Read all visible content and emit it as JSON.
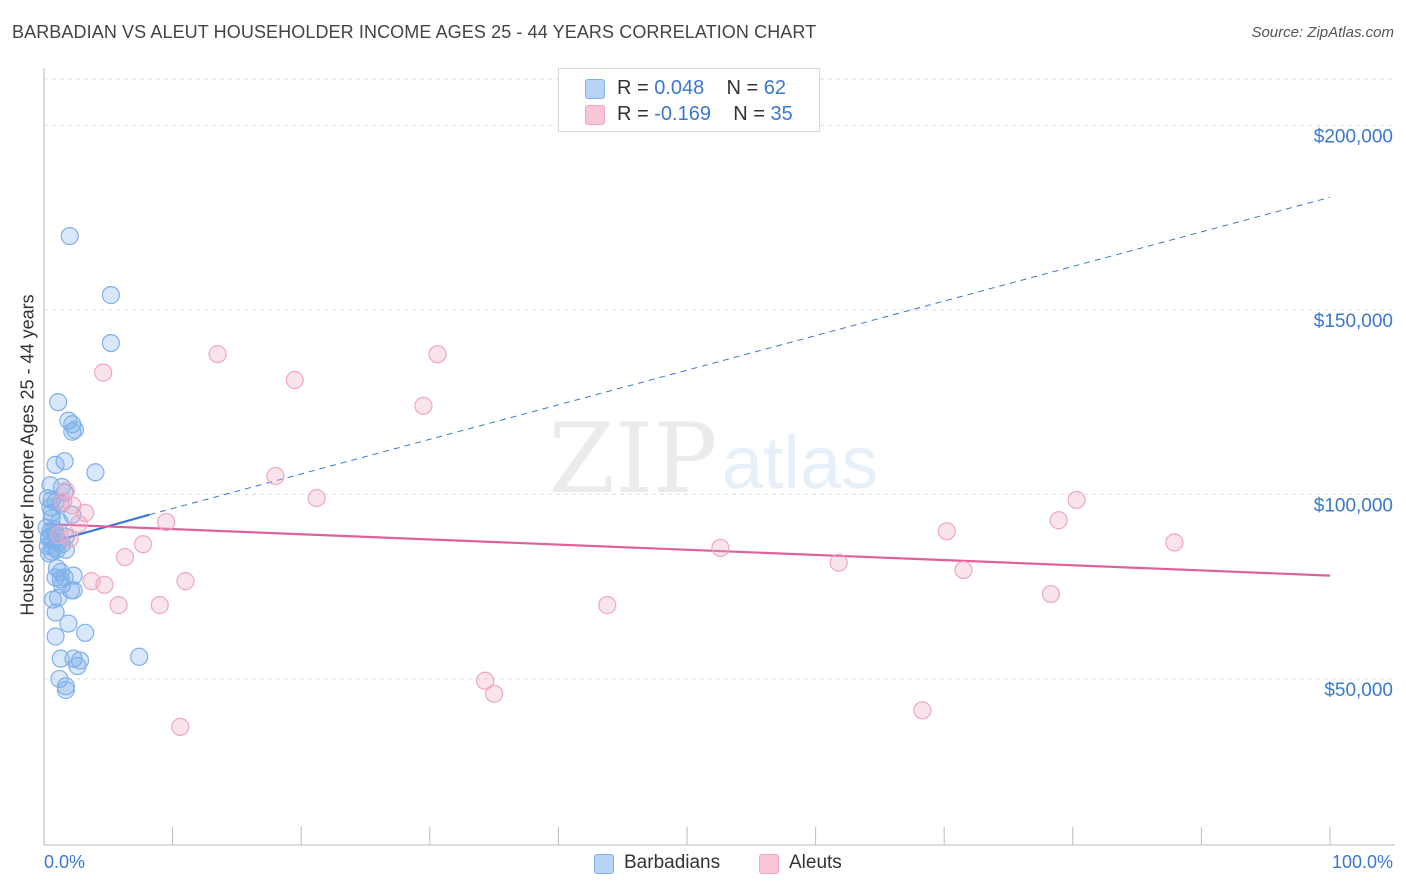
{
  "title": "BARBADIAN VS ALEUT HOUSEHOLDER INCOME AGES 25 - 44 YEARS CORRELATION CHART",
  "source": "Source: ZipAtlas.com",
  "colors": {
    "blue": "#7fb0ea",
    "blue_line": "#3a78d0",
    "pink": "#f0a6c0",
    "pink_line": "#e0609a",
    "grid": "#dddddd",
    "tick_text": "#3a78d0"
  },
  "legend": {
    "rows": [
      {
        "r_label": "R = ",
        "r_value": "0.048",
        "n_label": "N = ",
        "n_value": "62",
        "color": "#b9d3f5",
        "border": "#7fb0ea"
      },
      {
        "r_label": "R = ",
        "r_value": "-0.169",
        "n_label": "N = ",
        "n_value": "35",
        "color": "#f9c6d6",
        "border": "#f0a6c0"
      }
    ]
  },
  "bottom_legend": {
    "barbadians": "Barbadians",
    "aleuts": "Aleuts"
  },
  "watermark": {
    "zip": "ZIP",
    "atlas": "atlas"
  },
  "chart_data": {
    "type": "scatter",
    "title": "BARBADIAN VS ALEUT HOUSEHOLDER INCOME AGES 25 - 44 YEARS CORRELATION CHART",
    "xlabel": "",
    "ylabel": "Householder Income Ages 25 - 44 years",
    "xlim": [
      0,
      100
    ],
    "ylim": [
      5000,
      215000
    ],
    "x_tick_labels": [
      "0.0%",
      "100.0%"
    ],
    "y_ticks": [
      50000,
      100000,
      150000,
      200000
    ],
    "y_tick_labels": [
      "$50,000",
      "$100,000",
      "$150,000",
      "$200,000"
    ],
    "grid": true,
    "legend_position": "top-center",
    "series": [
      {
        "name": "Barbadians",
        "color": "#7fb0ea",
        "points": [
          [
            2.0,
            170000
          ],
          [
            5.2,
            154000
          ],
          [
            5.2,
            141000
          ],
          [
            1.1,
            125000
          ],
          [
            1.9,
            120000
          ],
          [
            2.2,
            119000
          ],
          [
            2.2,
            117000
          ],
          [
            2.4,
            117500
          ],
          [
            1.6,
            109000
          ],
          [
            0.9,
            108000
          ],
          [
            4.0,
            106000
          ],
          [
            0.5,
            102500
          ],
          [
            1.4,
            102000
          ],
          [
            1.6,
            100500
          ],
          [
            0.3,
            99000
          ],
          [
            0.6,
            98500
          ],
          [
            0.9,
            98000
          ],
          [
            1.3,
            97500
          ],
          [
            0.5,
            96500
          ],
          [
            0.6,
            95000
          ],
          [
            2.2,
            94500
          ],
          [
            0.2,
            91000
          ],
          [
            0.5,
            90000
          ],
          [
            0.9,
            89000
          ],
          [
            1.7,
            88500
          ],
          [
            0.4,
            88000
          ],
          [
            0.7,
            87500
          ],
          [
            1.1,
            87000
          ],
          [
            1.4,
            86500
          ],
          [
            0.3,
            86000
          ],
          [
            0.8,
            85500
          ],
          [
            1.0,
            85000
          ],
          [
            1.7,
            85000
          ],
          [
            0.6,
            84500
          ],
          [
            0.4,
            84000
          ],
          [
            1.0,
            80000
          ],
          [
            1.3,
            79000
          ],
          [
            2.3,
            78000
          ],
          [
            0.9,
            77500
          ],
          [
            1.3,
            77000
          ],
          [
            1.6,
            77500
          ],
          [
            1.4,
            75500
          ],
          [
            2.1,
            74000
          ],
          [
            2.3,
            74000
          ],
          [
            1.1,
            72000
          ],
          [
            0.7,
            71500
          ],
          [
            0.9,
            68000
          ],
          [
            1.9,
            65000
          ],
          [
            3.2,
            62500
          ],
          [
            0.9,
            61500
          ],
          [
            7.4,
            56000
          ],
          [
            1.3,
            55500
          ],
          [
            2.3,
            55500
          ],
          [
            2.8,
            55000
          ],
          [
            2.6,
            53500
          ],
          [
            1.2,
            50000
          ],
          [
            1.7,
            48000
          ],
          [
            1.7,
            47000
          ],
          [
            0.4,
            88500
          ],
          [
            0.8,
            90500
          ],
          [
            1.2,
            92500
          ],
          [
            0.6,
            93500
          ]
        ]
      },
      {
        "name": "Aleuts",
        "color": "#f0a6c0",
        "points": [
          [
            13.5,
            138000
          ],
          [
            30.6,
            138000
          ],
          [
            4.6,
            133000
          ],
          [
            19.5,
            131000
          ],
          [
            29.5,
            124000
          ],
          [
            18.0,
            105000
          ],
          [
            1.7,
            101000
          ],
          [
            2.2,
            97000
          ],
          [
            21.2,
            99000
          ],
          [
            80.3,
            98500
          ],
          [
            3.2,
            95000
          ],
          [
            2.7,
            92000
          ],
          [
            9.5,
            92500
          ],
          [
            70.2,
            90000
          ],
          [
            78.9,
            93000
          ],
          [
            1.2,
            89000
          ],
          [
            7.7,
            86500
          ],
          [
            87.9,
            87000
          ],
          [
            52.6,
            85500
          ],
          [
            6.3,
            83000
          ],
          [
            61.8,
            81500
          ],
          [
            71.5,
            79500
          ],
          [
            3.7,
            76500
          ],
          [
            11.0,
            76500
          ],
          [
            4.7,
            75500
          ],
          [
            78.3,
            73000
          ],
          [
            5.8,
            70000
          ],
          [
            9.0,
            70000
          ],
          [
            43.8,
            70000
          ],
          [
            34.3,
            49500
          ],
          [
            35.0,
            46000
          ],
          [
            68.3,
            41500
          ],
          [
            10.6,
            37000
          ],
          [
            1.5,
            98000
          ],
          [
            2.0,
            88000
          ]
        ]
      }
    ],
    "trend_lines": [
      {
        "series": "Barbadians",
        "x": [
          0,
          8.2
        ],
        "y": [
          86500,
          94500
        ],
        "style": "solid"
      },
      {
        "series": "Barbadians",
        "x": [
          8.2,
          100
        ],
        "y": [
          94500,
          180500
        ],
        "style": "dashed"
      },
      {
        "series": "Aleuts",
        "x": [
          0,
          100
        ],
        "y": [
          92000,
          78000
        ],
        "style": "solid"
      }
    ]
  }
}
